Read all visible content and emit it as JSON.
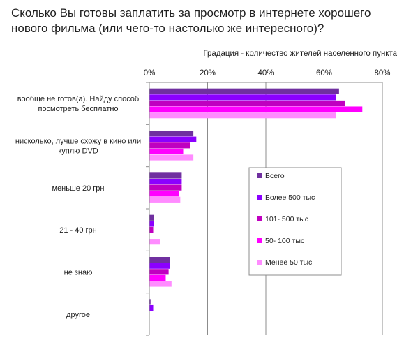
{
  "chart_data": {
    "type": "bar",
    "orientation": "horizontal",
    "title_lines": [
      "Сколько Вы готовы заплатить за просмотр в интернете хорошего",
      "нового фильма (или чего-то настолько же интересного)?"
    ],
    "subtitle": "Градация - количество жителей населенного пункта",
    "xlim": [
      0,
      80
    ],
    "x_ticks": [
      "0%",
      "20%",
      "40%",
      "60%",
      "80%"
    ],
    "x_axis_position": "top",
    "grid": true,
    "legend_position": "right",
    "categories": [
      [
        "вообще не готов(а). Найду способ",
        "посмотреть бесплатно"
      ],
      [
        "нисколько, лучше схожу в кино или",
        "куплю DVD"
      ],
      [
        "меньше 20 грн"
      ],
      [
        "21 - 40 грн"
      ],
      [
        "не знаю"
      ],
      [
        "другое"
      ]
    ],
    "series": [
      {
        "name": "Всего",
        "color": "#7030a0",
        "values": [
          65,
          15,
          11,
          1.5,
          7,
          0.3
        ]
      },
      {
        "name": "Более 500 тыс",
        "color": "#8b00ff",
        "values": [
          64,
          16,
          11,
          1.5,
          7,
          1.2
        ]
      },
      {
        "name": "101- 500 тыс",
        "color": "#c000c0",
        "values": [
          67,
          14,
          11,
          1.2,
          6.5,
          0
        ]
      },
      {
        "name": "50- 100 тыс",
        "color": "#ff00ff",
        "values": [
          73,
          11.5,
          10,
          0,
          5.5,
          0
        ]
      },
      {
        "name": "Менее 50 тыс",
        "color": "#ff8cff",
        "values": [
          64,
          15,
          10.5,
          3.5,
          7.5,
          0
        ]
      }
    ]
  }
}
